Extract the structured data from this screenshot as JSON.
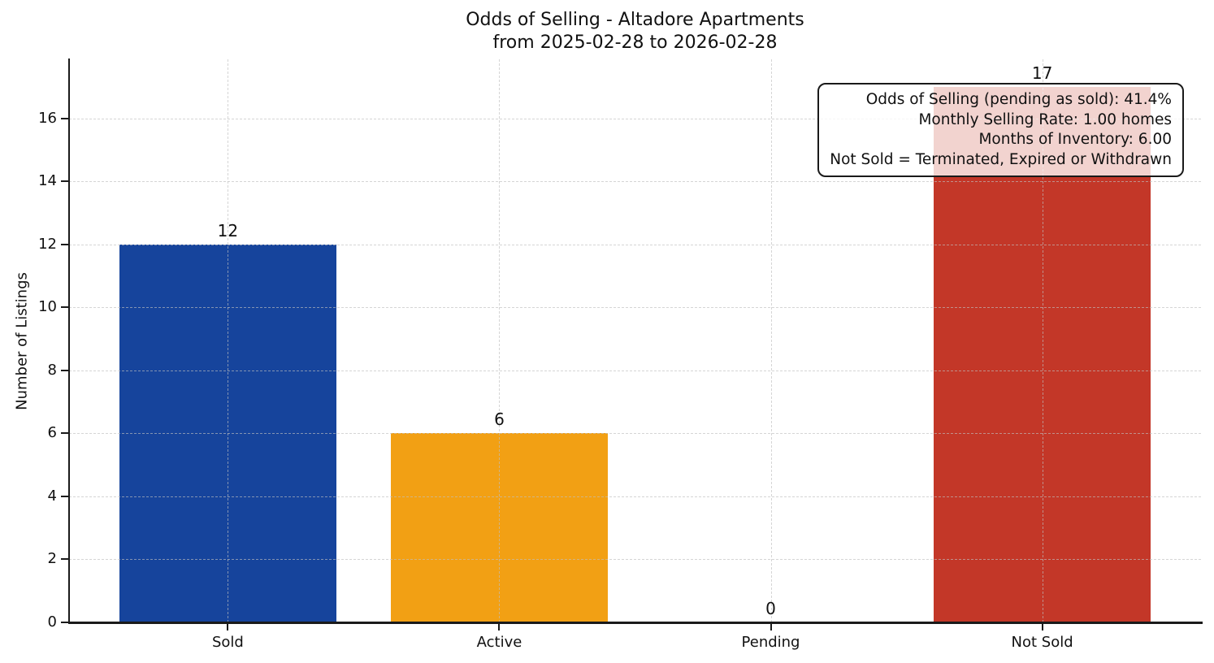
{
  "chart_data": {
    "type": "bar",
    "title": "Odds of Selling - Altadore Apartments",
    "subtitle": "from 2025-02-28 to 2026-02-28",
    "ylabel": "Number of Listings",
    "xlabel": "",
    "categories": [
      "Sold",
      "Active",
      "Pending",
      "Not Sold"
    ],
    "values": [
      12,
      6,
      0,
      17
    ],
    "bar_colors": [
      "#16449c",
      "#f2a014",
      "#808080",
      "#c33728"
    ],
    "yticks": [
      0,
      2,
      4,
      6,
      8,
      10,
      12,
      14,
      16
    ],
    "ylim": [
      0,
      17.88
    ],
    "xlim": [
      -0.585,
      3.585
    ],
    "bar_width": 0.8,
    "grid": "dashed, horizontal and vertical, drawn over bars",
    "legend": "none",
    "annotation": {
      "lines": [
        "Odds of Selling (pending as sold): 41.4%",
        "Monthly Selling Rate: 1.00 homes",
        "Months of Inventory: 6.00",
        "Not Sold = Terminated, Expired or Withdrawn"
      ]
    },
    "colors": {
      "sold_bar": "#16449c",
      "active_bar": "#f2a014",
      "not_sold_bar": "#c33728",
      "grid": "#bebebe",
      "axis": "#1a1a1a",
      "text": "#111111",
      "annotation_background": "rgba(255,255,255,0.78)"
    }
  }
}
